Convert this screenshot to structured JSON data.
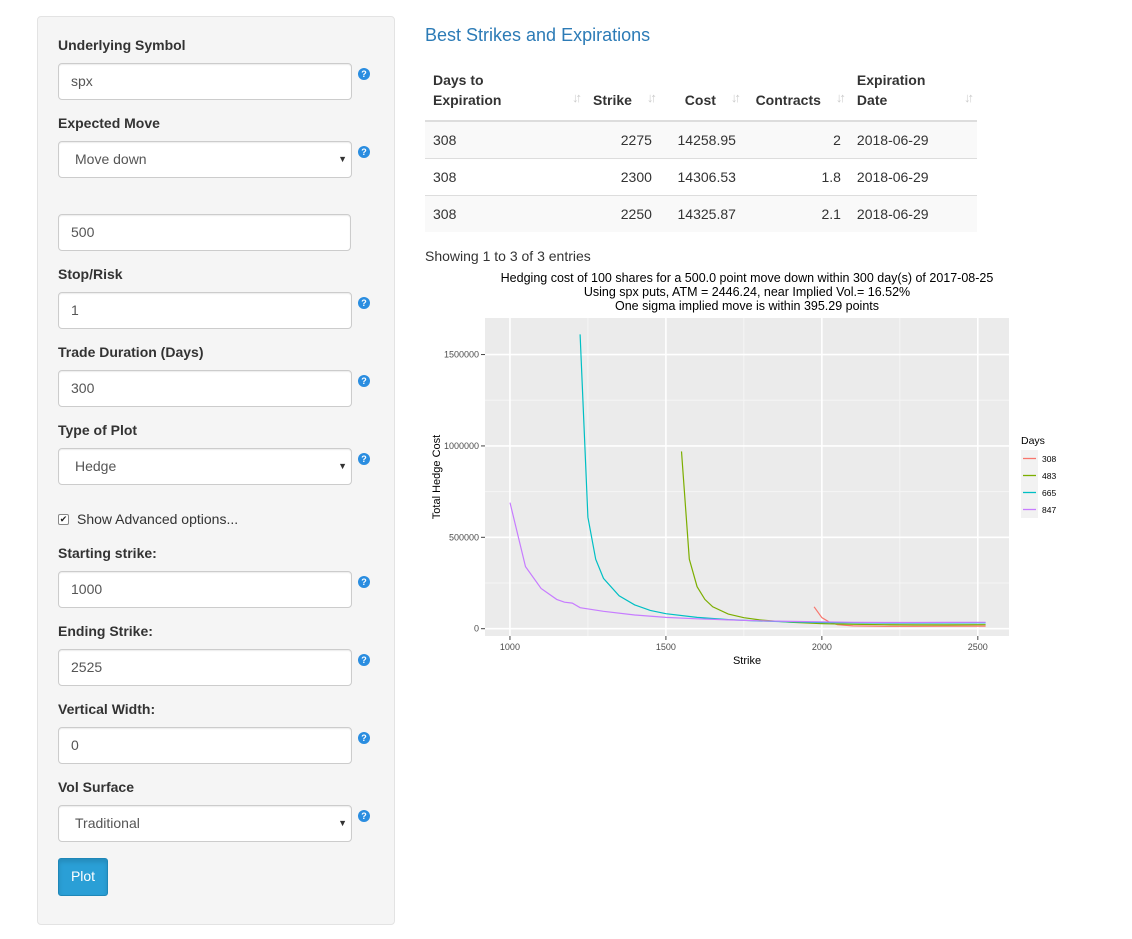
{
  "sidebar": {
    "underlying_symbol": {
      "label": "Underlying Symbol",
      "value": "spx"
    },
    "expected_move": {
      "label": "Expected Move",
      "value": "Move down"
    },
    "move_amount": {
      "value": "500"
    },
    "stop_risk": {
      "label": "Stop/Risk",
      "value": "1"
    },
    "trade_duration": {
      "label": "Trade Duration (Days)",
      "value": "300"
    },
    "plot_type": {
      "label": "Type of Plot",
      "value": "Hedge"
    },
    "advanced": {
      "label": "Show Advanced options...",
      "checked": true
    },
    "starting_strike": {
      "label": "Starting strike:",
      "value": "1000"
    },
    "ending_strike": {
      "label": "Ending Strike:",
      "value": "2525"
    },
    "vertical_width": {
      "label": "Vertical Width:",
      "value": "0"
    },
    "vol_surface": {
      "label": "Vol Surface",
      "value": "Traditional"
    },
    "plot_button": "Plot",
    "help_glyph": "?",
    "check_glyph": "✔",
    "caret_glyph": "▼"
  },
  "main": {
    "title": "Best Strikes and Expirations",
    "table": {
      "sort_glyph": "↓↑",
      "columns": [
        {
          "line1": "Days to",
          "line2": "Expiration"
        },
        {
          "line1": "Strike",
          "line2": ""
        },
        {
          "line1": "Cost",
          "line2": ""
        },
        {
          "line1": "Contracts",
          "line2": ""
        },
        {
          "line1": "Expiration",
          "line2": "Date"
        }
      ],
      "rows": [
        {
          "days": "308",
          "strike": "2275",
          "cost": "14258.95",
          "contracts": "2",
          "date": "2018-06-29"
        },
        {
          "days": "308",
          "strike": "2300",
          "cost": "14306.53",
          "contracts": "1.8",
          "date": "2018-06-29"
        },
        {
          "days": "308",
          "strike": "2250",
          "cost": "14325.87",
          "contracts": "2.1",
          "date": "2018-06-29"
        }
      ]
    },
    "info": "Showing 1 to 3 of 3 entries"
  },
  "chart_data": {
    "type": "line",
    "title": [
      "Hedging cost of 100 shares for a 500.0 point move down within 300 day(s) of 2017-08-25",
      "Using spx puts, ATM = 2446.24, near Implied Vol.= 16.52%",
      "One sigma implied move is within 395.29 points"
    ],
    "xlabel": "Strike",
    "ylabel": "Total Hedge Cost",
    "xlim": [
      920,
      2600
    ],
    "ylim": [
      -40000,
      1700000
    ],
    "xticks": [
      1000,
      1500,
      2000,
      2500
    ],
    "yticks": [
      0,
      500000,
      1000000,
      1500000
    ],
    "ytick_labels": [
      "0",
      "500000",
      "1000000",
      "1500000"
    ],
    "legend_title": "Days",
    "legend_position": "right",
    "grid": true,
    "panel_color": "#ebebeb",
    "series": [
      {
        "name": "308",
        "color": "#f8766d",
        "x": [
          1975,
          2000,
          2025,
          2050,
          2100,
          2200,
          2300,
          2400,
          2525
        ],
        "y": [
          120000,
          60000,
          35000,
          22000,
          15000,
          13000,
          13000,
          13500,
          14000
        ]
      },
      {
        "name": "483",
        "color": "#7cae00",
        "x": [
          1550,
          1575,
          1600,
          1625,
          1650,
          1700,
          1750,
          1800,
          1900,
          2000,
          2100,
          2200,
          2300,
          2400,
          2525
        ],
        "y": [
          970000,
          380000,
          230000,
          160000,
          120000,
          80000,
          60000,
          48000,
          35000,
          28000,
          24000,
          22000,
          21000,
          21000,
          22000
        ]
      },
      {
        "name": "665",
        "color": "#00bfc4",
        "x": [
          1225,
          1250,
          1275,
          1300,
          1350,
          1400,
          1450,
          1500,
          1600,
          1700,
          1800,
          1900,
          2000,
          2100,
          2200,
          2300,
          2400,
          2525
        ],
        "y": [
          1610000,
          610000,
          380000,
          275000,
          180000,
          130000,
          100000,
          82000,
          62000,
          50000,
          42000,
          37000,
          34000,
          32000,
          31000,
          31000,
          31500,
          32000
        ]
      },
      {
        "name": "847",
        "color": "#c77cff",
        "x": [
          1000,
          1050,
          1100,
          1150,
          1175,
          1200,
          1225,
          1300,
          1400,
          1500,
          1600,
          1700,
          1800,
          1900,
          2000,
          2100,
          2200,
          2300,
          2400,
          2525
        ],
        "y": [
          690000,
          340000,
          220000,
          160000,
          145000,
          140000,
          115000,
          95000,
          75000,
          62000,
          54000,
          48000,
          43000,
          40000,
          37000,
          35000,
          34000,
          34000,
          34500,
          35000
        ]
      }
    ]
  }
}
